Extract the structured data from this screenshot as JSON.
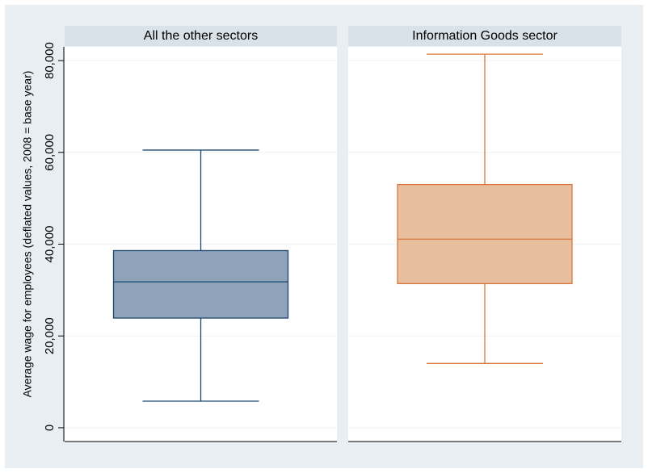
{
  "chart_data": {
    "type": "box",
    "ylabel": "Average wage for employees (deflated values, 2008 = base year)",
    "ylim": [
      -3000,
      83000
    ],
    "yticks": [
      0,
      {
        "value": 20000,
        "label": "20,000"
      },
      {
        "value": 40000,
        "label": "40,000"
      },
      {
        "value": 60000,
        "label": "60,000"
      },
      {
        "value": 80000,
        "label": "80,000"
      }
    ],
    "grid": true,
    "series": [
      {
        "name": "All the other sectors",
        "color": "#8ea2b8",
        "edge_color": "#1a476f",
        "min": 5800,
        "q1": 23900,
        "median": 31800,
        "q3": 38600,
        "max": 60500
      },
      {
        "name": "Information Goods sector",
        "color": "#e8bf9e",
        "edge_color": "#d9773a",
        "min": 14000,
        "q1": 31400,
        "median": 41100,
        "q3": 53000,
        "max": 81400
      }
    ]
  }
}
